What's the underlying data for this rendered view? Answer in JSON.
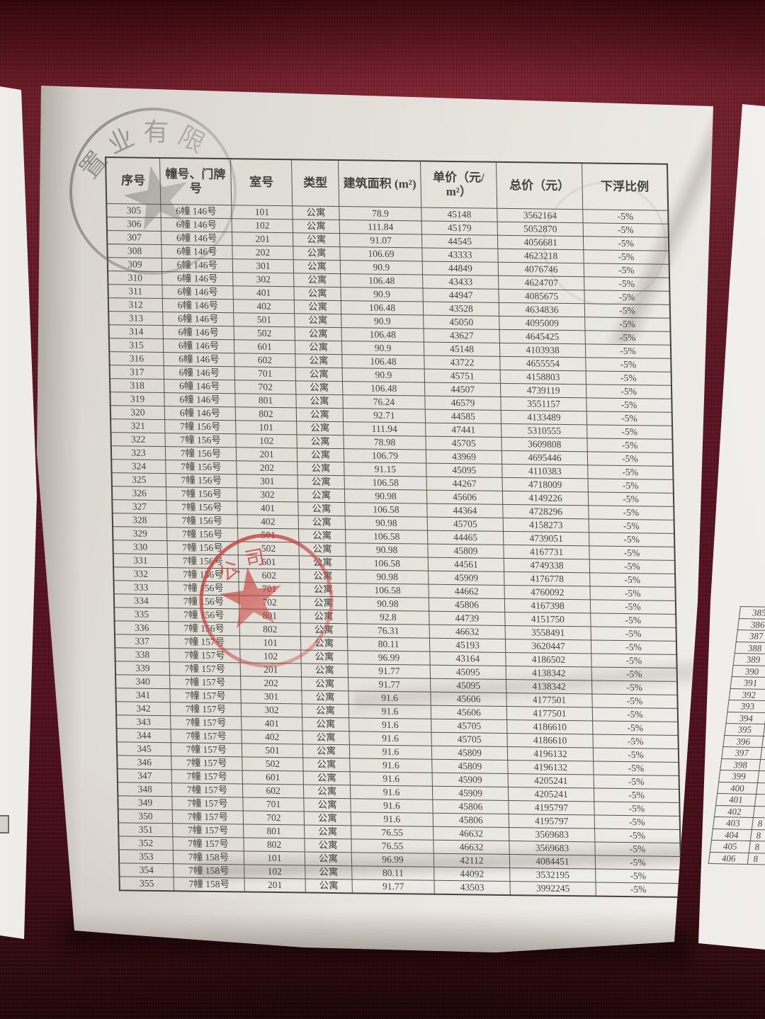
{
  "colors": {
    "wall": "#5c131c",
    "paper": "#e7e4df",
    "stamp_red": "#c8403a",
    "stamp_gray": "#66645e",
    "ink": "#44423d"
  },
  "stamps": {
    "gray": {
      "text": "置业有限"
    },
    "red": {
      "text": "公司"
    }
  },
  "main_page": {
    "header": [
      "序号",
      "幢号、门牌号",
      "室号",
      "类型",
      "建筑面积 (m²)",
      "单价（元/ m²）",
      "总价（元）",
      "下浮比例"
    ],
    "rows": [
      [
        "305",
        "6幢 146号",
        "101",
        "公寓",
        "78.9",
        "45148",
        "3562164",
        "-5%"
      ],
      [
        "306",
        "6幢 146号",
        "102",
        "公寓",
        "111.84",
        "45179",
        "5052870",
        "-5%"
      ],
      [
        "307",
        "6幢 146号",
        "201",
        "公寓",
        "91.07",
        "44545",
        "4056681",
        "-5%"
      ],
      [
        "308",
        "6幢 146号",
        "202",
        "公寓",
        "106.69",
        "43333",
        "4623218",
        "-5%"
      ],
      [
        "309",
        "6幢 146号",
        "301",
        "公寓",
        "90.9",
        "44849",
        "4076746",
        "-5%"
      ],
      [
        "310",
        "6幢 146号",
        "302",
        "公寓",
        "106.48",
        "43433",
        "4624707",
        "-5%"
      ],
      [
        "311",
        "6幢 146号",
        "401",
        "公寓",
        "90.9",
        "44947",
        "4085675",
        "-5%"
      ],
      [
        "312",
        "6幢 146号",
        "402",
        "公寓",
        "106.48",
        "43528",
        "4634836",
        "-5%"
      ],
      [
        "313",
        "6幢 146号",
        "501",
        "公寓",
        "90.9",
        "45050",
        "4095009",
        "-5%"
      ],
      [
        "314",
        "6幢 146号",
        "502",
        "公寓",
        "106.48",
        "43627",
        "4645425",
        "-5%"
      ],
      [
        "315",
        "6幢 146号",
        "601",
        "公寓",
        "90.9",
        "45148",
        "4103938",
        "-5%"
      ],
      [
        "316",
        "6幢 146号",
        "602",
        "公寓",
        "106.48",
        "43722",
        "4655554",
        "-5%"
      ],
      [
        "317",
        "6幢 146号",
        "701",
        "公寓",
        "90.9",
        "45751",
        "4158803",
        "-5%"
      ],
      [
        "318",
        "6幢 146号",
        "702",
        "公寓",
        "106.48",
        "44507",
        "4739119",
        "-5%"
      ],
      [
        "319",
        "6幢 146号",
        "801",
        "公寓",
        "76.24",
        "46579",
        "3551157",
        "-5%"
      ],
      [
        "320",
        "6幢 146号",
        "802",
        "公寓",
        "92.71",
        "44585",
        "4133489",
        "-5%"
      ],
      [
        "321",
        "7幢 156号",
        "101",
        "公寓",
        "111.94",
        "47441",
        "5310555",
        "-5%"
      ],
      [
        "322",
        "7幢 156号",
        "102",
        "公寓",
        "78.98",
        "45705",
        "3609808",
        "-5%"
      ],
      [
        "323",
        "7幢 156号",
        "201",
        "公寓",
        "106.79",
        "43969",
        "4695446",
        "-5%"
      ],
      [
        "324",
        "7幢 156号",
        "202",
        "公寓",
        "91.15",
        "45095",
        "4110383",
        "-5%"
      ],
      [
        "325",
        "7幢 156号",
        "301",
        "公寓",
        "106.58",
        "44267",
        "4718009",
        "-5%"
      ],
      [
        "326",
        "7幢 156号",
        "302",
        "公寓",
        "90.98",
        "45606",
        "4149226",
        "-5%"
      ],
      [
        "327",
        "7幢 156号",
        "401",
        "公寓",
        "106.58",
        "44364",
        "4728296",
        "-5%"
      ],
      [
        "328",
        "7幢 156号",
        "402",
        "公寓",
        "90.98",
        "45705",
        "4158273",
        "-5%"
      ],
      [
        "329",
        "7幢 156号",
        "501",
        "公寓",
        "106.58",
        "44465",
        "4739051",
        "-5%"
      ],
      [
        "330",
        "7幢 156号",
        "502",
        "公寓",
        "90.98",
        "45809",
        "4167731",
        "-5%"
      ],
      [
        "331",
        "7幢 156号",
        "601",
        "公寓",
        "106.58",
        "44561",
        "4749338",
        "-5%"
      ],
      [
        "332",
        "7幢 156号",
        "602",
        "公寓",
        "90.98",
        "45909",
        "4176778",
        "-5%"
      ],
      [
        "333",
        "7幢 156号",
        "701",
        "公寓",
        "106.58",
        "44662",
        "4760092",
        "-5%"
      ],
      [
        "334",
        "7幢 156号",
        "702",
        "公寓",
        "90.98",
        "45806",
        "4167398",
        "-5%"
      ],
      [
        "335",
        "7幢 156号",
        "801",
        "公寓",
        "92.8",
        "44739",
        "4151750",
        "-5%"
      ],
      [
        "336",
        "7幢 156号",
        "802",
        "公寓",
        "76.31",
        "46632",
        "3558491",
        "-5%"
      ],
      [
        "337",
        "7幢 157号",
        "101",
        "公寓",
        "80.11",
        "45193",
        "3620447",
        "-5%"
      ],
      [
        "338",
        "7幢 157号",
        "102",
        "公寓",
        "96.99",
        "43164",
        "4186502",
        "-5%"
      ],
      [
        "339",
        "7幢 157号",
        "201",
        "公寓",
        "91.77",
        "45095",
        "4138342",
        "-5%"
      ],
      [
        "340",
        "7幢 157号",
        "202",
        "公寓",
        "91.77",
        "45095",
        "4138342",
        "-5%"
      ],
      [
        "341",
        "7幢 157号",
        "301",
        "公寓",
        "91.6",
        "45606",
        "4177501",
        "-5%"
      ],
      [
        "342",
        "7幢 157号",
        "302",
        "公寓",
        "91.6",
        "45606",
        "4177501",
        "-5%"
      ],
      [
        "343",
        "7幢 157号",
        "401",
        "公寓",
        "91.6",
        "45705",
        "4186610",
        "-5%"
      ],
      [
        "344",
        "7幢 157号",
        "402",
        "公寓",
        "91.6",
        "45705",
        "4186610",
        "-5%"
      ],
      [
        "345",
        "7幢 157号",
        "501",
        "公寓",
        "91.6",
        "45809",
        "4196132",
        "-5%"
      ],
      [
        "346",
        "7幢 157号",
        "502",
        "公寓",
        "91.6",
        "45809",
        "4196132",
        "-5%"
      ],
      [
        "347",
        "7幢 157号",
        "601",
        "公寓",
        "91.6",
        "45909",
        "4205241",
        "-5%"
      ],
      [
        "348",
        "7幢 157号",
        "602",
        "公寓",
        "91.6",
        "45909",
        "4205241",
        "-5%"
      ],
      [
        "349",
        "7幢 157号",
        "701",
        "公寓",
        "91.6",
        "45806",
        "4195797",
        "-5%"
      ],
      [
        "350",
        "7幢 157号",
        "702",
        "公寓",
        "91.6",
        "45806",
        "4195797",
        "-5%"
      ],
      [
        "351",
        "7幢 157号",
        "801",
        "公寓",
        "76.55",
        "46632",
        "3569683",
        "-5%"
      ],
      [
        "352",
        "7幢 157号",
        "802",
        "公寓",
        "76.55",
        "46632",
        "3569683",
        "-5%"
      ],
      [
        "353",
        "7幢 158号",
        "101",
        "公寓",
        "96.99",
        "42112",
        "4084451",
        "-5%"
      ],
      [
        "354",
        "7幢 158号",
        "102",
        "公寓",
        "80.11",
        "44092",
        "3532195",
        "-5%"
      ],
      [
        "355",
        "7幢 158号",
        "201",
        "公寓",
        "91.77",
        "43503",
        "3992245",
        "-5%"
      ]
    ]
  },
  "right_page": {
    "rows": [
      {
        "seq": "385",
        "partial": ""
      },
      {
        "seq": "386",
        "partial": ""
      },
      {
        "seq": "387",
        "partial": ""
      },
      {
        "seq": "388",
        "partial": ""
      },
      {
        "seq": "389",
        "partial": ""
      },
      {
        "seq": "390",
        "partial": ""
      },
      {
        "seq": "391",
        "partial": ""
      },
      {
        "seq": "392",
        "partial": ""
      },
      {
        "seq": "393",
        "partial": ""
      },
      {
        "seq": "394",
        "partial": ""
      },
      {
        "seq": "395",
        "partial": ""
      },
      {
        "seq": "396",
        "partial": ""
      },
      {
        "seq": "397",
        "partial": ""
      },
      {
        "seq": "398",
        "partial": ""
      },
      {
        "seq": "399",
        "partial": ""
      },
      {
        "seq": "400",
        "partial": ""
      },
      {
        "seq": "401",
        "partial": ""
      },
      {
        "seq": "402",
        "partial": ""
      },
      {
        "seq": "403",
        "partial": "8"
      },
      {
        "seq": "404",
        "partial": "8"
      },
      {
        "seq": "405",
        "partial": "8"
      },
      {
        "seq": "406",
        "partial": "8"
      }
    ]
  }
}
